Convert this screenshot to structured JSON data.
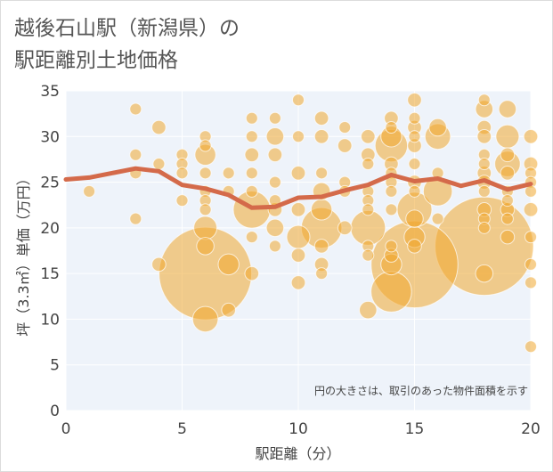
{
  "title": "越後石山駅（新潟県）の\n駅距離別土地価格",
  "colors": {
    "bubble": "#f0a830",
    "line": "#d46a4a",
    "plot_bg": "#eef3fa",
    "grid": "#ffffff",
    "axis_text": "#444444"
  },
  "chart_data": {
    "type": "scatter",
    "title": "越後石山駅（新潟県）の駅距離別土地価格",
    "xlabel": "駅距離（分）",
    "ylabel": "坪（3.3㎡）単価（万円）",
    "annotation": "円の大きさは、取引のあった物件面積を示す",
    "xlim": [
      0,
      20
    ],
    "ylim": [
      0,
      35
    ],
    "x_ticks": [
      0,
      5,
      10,
      15,
      20
    ],
    "y_ticks": [
      0,
      5,
      10,
      15,
      20,
      25,
      30,
      35
    ],
    "grid": true,
    "series": [
      {
        "type": "bubble",
        "points": [
          {
            "x": 1,
            "y": 24,
            "size": 1
          },
          {
            "x": 3,
            "y": 33,
            "size": 1
          },
          {
            "x": 3,
            "y": 28,
            "size": 1
          },
          {
            "x": 3,
            "y": 26,
            "size": 1
          },
          {
            "x": 3,
            "y": 21,
            "size": 1
          },
          {
            "x": 4,
            "y": 31,
            "size": 1.2
          },
          {
            "x": 4,
            "y": 27,
            "size": 1
          },
          {
            "x": 4,
            "y": 16,
            "size": 1.2
          },
          {
            "x": 5,
            "y": 28,
            "size": 1
          },
          {
            "x": 5,
            "y": 27,
            "size": 1
          },
          {
            "x": 5,
            "y": 26,
            "size": 1
          },
          {
            "x": 5,
            "y": 23,
            "size": 1
          },
          {
            "x": 6,
            "y": 30,
            "size": 1
          },
          {
            "x": 6,
            "y": 29,
            "size": 1
          },
          {
            "x": 6,
            "y": 28,
            "size": 1.8
          },
          {
            "x": 6,
            "y": 26,
            "size": 1
          },
          {
            "x": 6,
            "y": 24,
            "size": 1
          },
          {
            "x": 6,
            "y": 23,
            "size": 1
          },
          {
            "x": 6,
            "y": 22,
            "size": 1
          },
          {
            "x": 6,
            "y": 20,
            "size": 2
          },
          {
            "x": 6,
            "y": 18,
            "size": 1.5
          },
          {
            "x": 6,
            "y": 15,
            "size": 8
          },
          {
            "x": 6,
            "y": 10,
            "size": 2.2
          },
          {
            "x": 7,
            "y": 26,
            "size": 1
          },
          {
            "x": 7,
            "y": 24,
            "size": 1
          },
          {
            "x": 7,
            "y": 16,
            "size": 1.8
          },
          {
            "x": 7,
            "y": 11,
            "size": 1.2
          },
          {
            "x": 8,
            "y": 32,
            "size": 1
          },
          {
            "x": 8,
            "y": 30,
            "size": 1
          },
          {
            "x": 8,
            "y": 28,
            "size": 1.2
          },
          {
            "x": 8,
            "y": 26,
            "size": 1
          },
          {
            "x": 8,
            "y": 24,
            "size": 1
          },
          {
            "x": 8,
            "y": 22,
            "size": 3.2
          },
          {
            "x": 8,
            "y": 19,
            "size": 1
          },
          {
            "x": 8,
            "y": 15,
            "size": 1.2
          },
          {
            "x": 9,
            "y": 32,
            "size": 1
          },
          {
            "x": 9,
            "y": 30,
            "size": 1.5
          },
          {
            "x": 9,
            "y": 28,
            "size": 1.2
          },
          {
            "x": 9,
            "y": 25,
            "size": 1
          },
          {
            "x": 9,
            "y": 23,
            "size": 1
          },
          {
            "x": 9,
            "y": 22,
            "size": 1.2
          },
          {
            "x": 9,
            "y": 20,
            "size": 1.5
          },
          {
            "x": 9,
            "y": 18,
            "size": 1
          },
          {
            "x": 10,
            "y": 34,
            "size": 1
          },
          {
            "x": 10,
            "y": 30,
            "size": 1
          },
          {
            "x": 10,
            "y": 26,
            "size": 1.2
          },
          {
            "x": 10,
            "y": 22,
            "size": 1.2
          },
          {
            "x": 10,
            "y": 19,
            "size": 2
          },
          {
            "x": 10,
            "y": 17,
            "size": 1.2
          },
          {
            "x": 10,
            "y": 14,
            "size": 1.2
          },
          {
            "x": 11,
            "y": 32,
            "size": 1.2
          },
          {
            "x": 11,
            "y": 30,
            "size": 1.2
          },
          {
            "x": 11,
            "y": 26,
            "size": 1
          },
          {
            "x": 11,
            "y": 24,
            "size": 1.5
          },
          {
            "x": 11,
            "y": 22,
            "size": 1.8
          },
          {
            "x": 11,
            "y": 20,
            "size": 3.5
          },
          {
            "x": 11,
            "y": 18,
            "size": 1.2
          },
          {
            "x": 11,
            "y": 16,
            "size": 1.2
          },
          {
            "x": 11,
            "y": 15,
            "size": 1
          },
          {
            "x": 12,
            "y": 31,
            "size": 1
          },
          {
            "x": 12,
            "y": 29,
            "size": 1.2
          },
          {
            "x": 12,
            "y": 25,
            "size": 1
          },
          {
            "x": 12,
            "y": 24,
            "size": 1
          },
          {
            "x": 12,
            "y": 20,
            "size": 1.2
          },
          {
            "x": 13,
            "y": 30,
            "size": 1.2
          },
          {
            "x": 13,
            "y": 28,
            "size": 1.2
          },
          {
            "x": 13,
            "y": 27,
            "size": 1
          },
          {
            "x": 13,
            "y": 24,
            "size": 1
          },
          {
            "x": 13,
            "y": 23,
            "size": 1
          },
          {
            "x": 13,
            "y": 22,
            "size": 1
          },
          {
            "x": 13,
            "y": 20,
            "size": 3
          },
          {
            "x": 13,
            "y": 18,
            "size": 1
          },
          {
            "x": 13,
            "y": 17,
            "size": 1
          },
          {
            "x": 13,
            "y": 11,
            "size": 1.5
          },
          {
            "x": 14,
            "y": 32,
            "size": 1.2
          },
          {
            "x": 14,
            "y": 31,
            "size": 1
          },
          {
            "x": 14,
            "y": 30,
            "size": 1.8
          },
          {
            "x": 14,
            "y": 29,
            "size": 2.8
          },
          {
            "x": 14,
            "y": 27,
            "size": 1.2
          },
          {
            "x": 14,
            "y": 26,
            "size": 1
          },
          {
            "x": 14,
            "y": 25,
            "size": 1
          },
          {
            "x": 14,
            "y": 24,
            "size": 1
          },
          {
            "x": 14,
            "y": 22,
            "size": 1
          },
          {
            "x": 14,
            "y": 18,
            "size": 1
          },
          {
            "x": 14,
            "y": 17,
            "size": 1.2
          },
          {
            "x": 14,
            "y": 16,
            "size": 1.8
          },
          {
            "x": 14,
            "y": 13,
            "size": 3.5
          },
          {
            "x": 15,
            "y": 34,
            "size": 1.2
          },
          {
            "x": 15,
            "y": 32,
            "size": 1
          },
          {
            "x": 15,
            "y": 31,
            "size": 1.2
          },
          {
            "x": 15,
            "y": 30,
            "size": 1
          },
          {
            "x": 15,
            "y": 29,
            "size": 1.2
          },
          {
            "x": 15,
            "y": 27,
            "size": 1
          },
          {
            "x": 15,
            "y": 25,
            "size": 1.2
          },
          {
            "x": 15,
            "y": 24,
            "size": 1
          },
          {
            "x": 15,
            "y": 22,
            "size": 3
          },
          {
            "x": 15,
            "y": 21,
            "size": 1.5
          },
          {
            "x": 15,
            "y": 19,
            "size": 1.8
          },
          {
            "x": 15,
            "y": 18,
            "size": 1.2
          },
          {
            "x": 15,
            "y": 16,
            "size": 7.5
          },
          {
            "x": 16,
            "y": 31,
            "size": 1.5
          },
          {
            "x": 16,
            "y": 30,
            "size": 2.2
          },
          {
            "x": 16,
            "y": 26,
            "size": 1
          },
          {
            "x": 16,
            "y": 24,
            "size": 2.5
          },
          {
            "x": 16,
            "y": 21,
            "size": 1
          },
          {
            "x": 18,
            "y": 34,
            "size": 1
          },
          {
            "x": 18,
            "y": 33,
            "size": 1.5
          },
          {
            "x": 18,
            "y": 31,
            "size": 1.2
          },
          {
            "x": 18,
            "y": 30,
            "size": 1.2
          },
          {
            "x": 18,
            "y": 28,
            "size": 1
          },
          {
            "x": 18,
            "y": 27,
            "size": 1
          },
          {
            "x": 18,
            "y": 26,
            "size": 1.2
          },
          {
            "x": 18,
            "y": 25,
            "size": 1.2
          },
          {
            "x": 18,
            "y": 24,
            "size": 1
          },
          {
            "x": 18,
            "y": 22,
            "size": 1.2
          },
          {
            "x": 18,
            "y": 21,
            "size": 1
          },
          {
            "x": 18,
            "y": 20,
            "size": 1
          },
          {
            "x": 18,
            "y": 18,
            "size": 8.5
          },
          {
            "x": 18,
            "y": 15,
            "size": 1.5
          },
          {
            "x": 19,
            "y": 33,
            "size": 1.5
          },
          {
            "x": 19,
            "y": 30,
            "size": 2
          },
          {
            "x": 19,
            "y": 28,
            "size": 1.2
          },
          {
            "x": 19,
            "y": 27,
            "size": 2.2
          },
          {
            "x": 19,
            "y": 26,
            "size": 1.2
          },
          {
            "x": 19,
            "y": 24,
            "size": 1
          },
          {
            "x": 19,
            "y": 23,
            "size": 1
          },
          {
            "x": 19,
            "y": 22,
            "size": 1.2
          },
          {
            "x": 19,
            "y": 21,
            "size": 1
          },
          {
            "x": 19,
            "y": 19,
            "size": 1.2
          },
          {
            "x": 20,
            "y": 30,
            "size": 1.2
          },
          {
            "x": 20,
            "y": 27,
            "size": 1.2
          },
          {
            "x": 20,
            "y": 26,
            "size": 1
          },
          {
            "x": 20,
            "y": 25,
            "size": 1
          },
          {
            "x": 20,
            "y": 24,
            "size": 1
          },
          {
            "x": 20,
            "y": 22,
            "size": 1.2
          },
          {
            "x": 20,
            "y": 19,
            "size": 1
          },
          {
            "x": 20,
            "y": 16,
            "size": 1
          },
          {
            "x": 20,
            "y": 14,
            "size": 1
          },
          {
            "x": 20,
            "y": 7,
            "size": 1
          }
        ]
      },
      {
        "type": "line",
        "x": [
          0,
          1,
          2,
          3,
          4,
          5,
          6,
          7,
          8,
          9,
          10,
          11,
          12,
          13,
          14,
          15,
          16,
          17,
          18,
          19,
          20
        ],
        "y": [
          25.3,
          25.5,
          26.0,
          26.5,
          26.2,
          24.7,
          24.3,
          23.6,
          22.2,
          22.3,
          23.3,
          23.4,
          24.1,
          24.7,
          25.8,
          25.1,
          25.4,
          24.6,
          25.2,
          24.2,
          24.8
        ]
      }
    ]
  }
}
